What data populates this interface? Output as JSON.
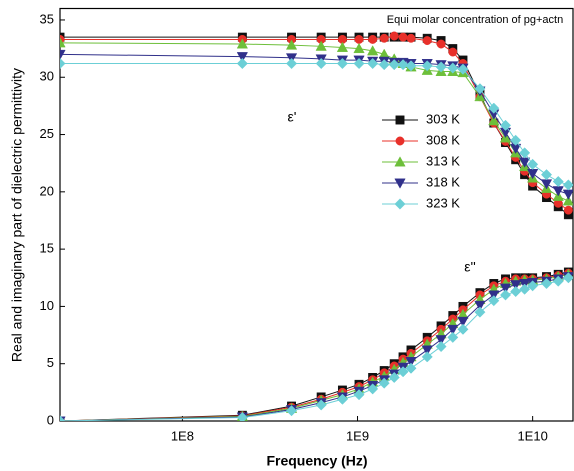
{
  "chart_data": {
    "type": "line",
    "title": "Equi molar concentration of pg+actn",
    "x_label": "Frequency (Hz)",
    "y_label": "Real and imaginary part of dielectric permittivity",
    "annotations": [
      "ε'",
      "ε''"
    ],
    "log_x": true,
    "x": [
      20000000,
      220000000,
      420000000,
      620000000,
      820000000,
      1020000000,
      1220000000,
      1420000000,
      1620000000,
      1820000000,
      2020000000,
      2500000000,
      3000000000,
      3500000000,
      4000000000,
      5000000000,
      6000000000,
      7000000000,
      8000000000,
      9000000000,
      10000000000,
      12000000000,
      14000000000,
      16000000000
    ],
    "series": [
      {
        "name": "303 K",
        "color": "#111111",
        "marker": "square",
        "real": [
          33.5,
          33.5,
          33.5,
          33.5,
          33.5,
          33.5,
          33.5,
          33.5,
          33.5,
          33.5,
          33.5,
          33.4,
          33.2,
          32.5,
          31.5,
          28.5,
          26,
          24.3,
          22.8,
          21.5,
          20.5,
          19.5,
          18.7,
          18
        ],
        "imaginary": [
          0,
          0.5,
          1.3,
          2.1,
          2.7,
          3.2,
          3.8,
          4.4,
          5,
          5.6,
          6.2,
          7.3,
          8.3,
          9.2,
          10,
          11.2,
          12,
          12.4,
          12.5,
          12.5,
          12.5,
          12.6,
          12.8,
          13
        ]
      },
      {
        "name": "308 K",
        "color": "#e8302a",
        "marker": "circle",
        "real": [
          33.3,
          33.3,
          33.3,
          33.3,
          33.3,
          33.3,
          33.3,
          33.4,
          33.6,
          33.5,
          33.4,
          33.2,
          32.9,
          32.2,
          31.2,
          28.3,
          26,
          24.4,
          23,
          21.8,
          20.8,
          19.8,
          19,
          18.4
        ],
        "imaginary": [
          0,
          0.45,
          1.2,
          1.9,
          2.5,
          3,
          3.6,
          4.2,
          4.8,
          5.4,
          5.9,
          7,
          8,
          8.9,
          9.7,
          11,
          11.8,
          12.2,
          12.4,
          12.4,
          12.4,
          12.5,
          12.7,
          12.9
        ]
      },
      {
        "name": "313 K",
        "color": "#6dbf3a",
        "marker": "triangle-up",
        "real": [
          33,
          32.9,
          32.8,
          32.7,
          32.6,
          32.5,
          32.3,
          32,
          31.6,
          31.2,
          30.9,
          30.6,
          30.5,
          30.5,
          30.4,
          28.3,
          26.2,
          24.7,
          23.4,
          22.2,
          21.2,
          20.3,
          19.6,
          19.2
        ],
        "imaginary": [
          0,
          0.4,
          1.1,
          1.8,
          2.3,
          2.8,
          3.4,
          3.9,
          4.5,
          5.1,
          5.6,
          6.7,
          7.6,
          8.5,
          9.3,
          10.6,
          11.5,
          12,
          12.2,
          12.3,
          12.3,
          12.4,
          12.6,
          12.8
        ]
      },
      {
        "name": "318 K",
        "color": "#30308a",
        "marker": "triangle-down",
        "real": [
          32,
          31.8,
          31.7,
          31.6,
          31.5,
          31.5,
          31.4,
          31.4,
          31.3,
          31.3,
          31.2,
          31.2,
          31.1,
          31,
          30.8,
          28.8,
          26.8,
          25.2,
          23.8,
          22.6,
          21.6,
          20.7,
          20.1,
          19.8
        ],
        "imaginary": [
          0,
          0.35,
          1,
          1.6,
          2.1,
          2.6,
          3.1,
          3.6,
          4.1,
          4.7,
          5.2,
          6.2,
          7.1,
          8,
          8.7,
          10.1,
          11,
          11.6,
          11.9,
          12,
          12.1,
          12.2,
          12.4,
          12.6
        ]
      },
      {
        "name": "323 K",
        "color": "#6ccfd6",
        "marker": "diamond",
        "real": [
          31.2,
          31.2,
          31.2,
          31.2,
          31.2,
          31.2,
          31.2,
          31.1,
          31.1,
          31.1,
          31,
          31,
          30.9,
          30.8,
          30.7,
          29,
          27.3,
          25.8,
          24.5,
          23.4,
          22.4,
          21.5,
          20.9,
          20.6
        ],
        "imaginary": [
          0,
          0.3,
          0.9,
          1.4,
          1.9,
          2.3,
          2.8,
          3.3,
          3.8,
          4.3,
          4.6,
          5.6,
          6.5,
          7.3,
          8,
          9.5,
          10.5,
          11,
          11.3,
          11.5,
          11.8,
          12,
          12.2,
          12.5
        ]
      }
    ],
    "xlim": [
      20000000,
      17000000000
    ],
    "xticks": [
      {
        "value": 100000000,
        "label": "1E8"
      },
      {
        "value": 1000000000,
        "label": "1E9"
      },
      {
        "value": 10000000000,
        "label": "1E10"
      }
    ],
    "ylim": [
      0,
      36
    ],
    "yticks": [
      0,
      5,
      10,
      15,
      20,
      25,
      30,
      35
    ],
    "legend": "upper right"
  }
}
